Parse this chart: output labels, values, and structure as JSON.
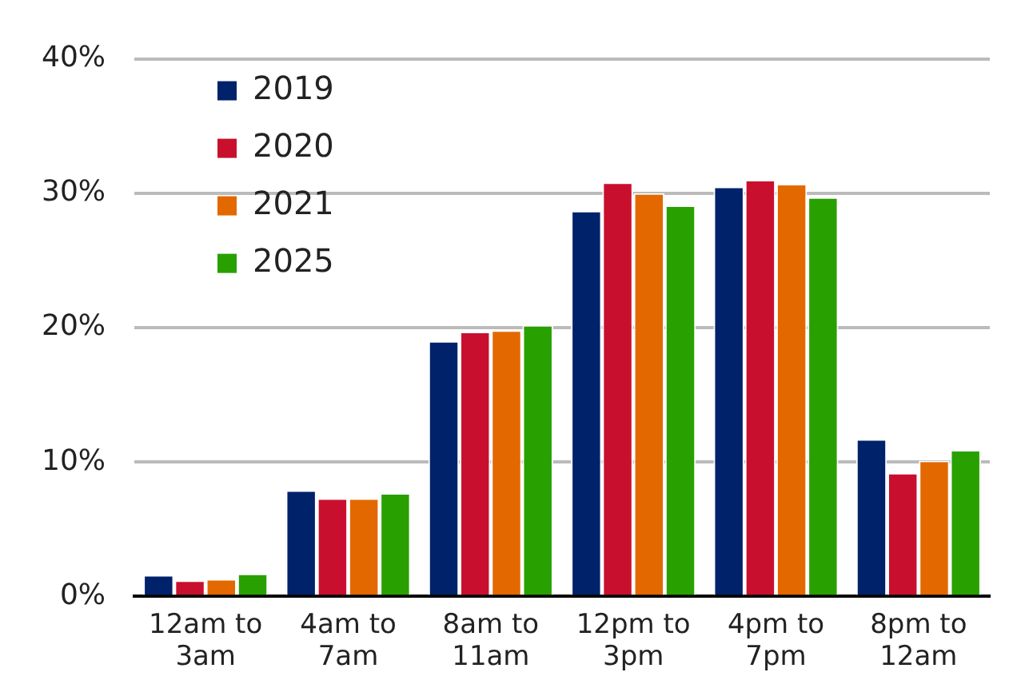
{
  "chart_data": {
    "type": "bar",
    "categories": [
      "12am to 3am",
      "4am to 7am",
      "8am to 11am",
      "12pm to 3pm",
      "4pm to 7pm",
      "8pm to 12am"
    ],
    "series": [
      {
        "name": "2019",
        "color": "#00226a",
        "values": [
          1.6,
          7.9,
          19.0,
          28.7,
          30.5,
          11.7
        ]
      },
      {
        "name": "2020",
        "color": "#c8102e",
        "values": [
          1.2,
          7.3,
          19.7,
          30.8,
          31.0,
          9.2
        ]
      },
      {
        "name": "2021",
        "color": "#e36800",
        "values": [
          1.3,
          7.3,
          19.8,
          30.0,
          30.7,
          10.1
        ]
      },
      {
        "name": "2025",
        "color": "#28a000",
        "values": [
          1.7,
          7.7,
          20.2,
          29.1,
          29.7,
          10.9
        ]
      }
    ],
    "ylim": [
      0,
      40
    ],
    "yticks": [
      {
        "value": 0,
        "label": "0%"
      },
      {
        "value": 10,
        "label": "10%"
      },
      {
        "value": 20,
        "label": "20%"
      },
      {
        "value": 30,
        "label": "30%"
      },
      {
        "value": 40,
        "label": "40%"
      }
    ],
    "grid": "y",
    "legend": "top left"
  }
}
